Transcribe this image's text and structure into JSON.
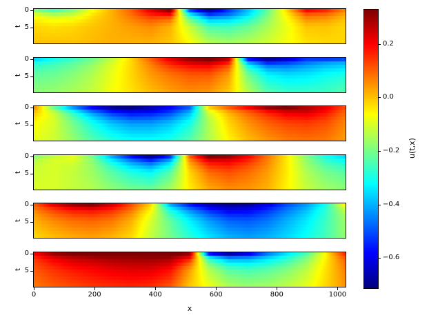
{
  "figure": {
    "background": "#ffffff",
    "text_color": "#000000"
  },
  "chart_data": {
    "type": "heatmap",
    "title": "",
    "xlabel": "x",
    "ylabel": "t",
    "colorbar_label": "u(t,x)",
    "colormap": "jet",
    "vmin": -0.71,
    "vmax": 0.33,
    "x_range": [
      0,
      1024
    ],
    "t_range": [
      0,
      10
    ],
    "x_tick_values": [
      0,
      200,
      400,
      600,
      800,
      1000
    ],
    "x_tick_labels": [
      "0",
      "200",
      "400",
      "600",
      "800",
      "1000"
    ],
    "t_tick_values": [
      0,
      5
    ],
    "t_tick_labels": [
      "0",
      "5"
    ],
    "colorbar_tick_values": [
      0.2,
      0.0,
      -0.2,
      -0.4,
      -0.6
    ],
    "colorbar_tick_labels": [
      "0.2",
      "0.0",
      "−0.2",
      "−0.4",
      "−0.6"
    ],
    "grid_x": [
      0,
      64,
      128,
      192,
      256,
      320,
      384,
      448,
      512,
      576,
      640,
      704,
      768,
      832,
      896,
      960,
      1024
    ],
    "grid_t": [
      0,
      1,
      2.5,
      5,
      10
    ],
    "panels": [
      {
        "name": "panel-1",
        "values": [
          [
            -0.18,
            -0.24,
            -0.18,
            -0.06,
            0.02,
            0.1,
            0.22,
            0.32,
            -0.5,
            -0.68,
            -0.52,
            -0.38,
            -0.22,
            -0.02,
            0.2,
            0.16,
            0.06
          ],
          [
            -0.1,
            -0.16,
            -0.13,
            -0.04,
            0.02,
            0.09,
            0.18,
            0.22,
            -0.35,
            -0.55,
            -0.48,
            -0.36,
            -0.2,
            -0.04,
            0.12,
            0.1,
            0.03
          ],
          [
            -0.05,
            -0.08,
            -0.07,
            -0.02,
            0.02,
            0.07,
            0.12,
            0.1,
            -0.22,
            -0.4,
            -0.38,
            -0.3,
            -0.18,
            -0.06,
            0.06,
            0.05,
            0.0
          ],
          [
            -0.02,
            -0.03,
            -0.02,
            0.0,
            0.02,
            0.04,
            0.06,
            0.02,
            -0.12,
            -0.25,
            -0.26,
            -0.22,
            -0.15,
            -0.08,
            0.0,
            0.0,
            -0.02
          ],
          [
            0.0,
            0.0,
            0.0,
            0.01,
            0.02,
            0.02,
            0.02,
            0.0,
            -0.06,
            -0.14,
            -0.16,
            -0.14,
            -0.11,
            -0.07,
            -0.03,
            -0.02,
            -0.02
          ]
        ]
      },
      {
        "name": "panel-2",
        "values": [
          [
            -0.36,
            -0.3,
            -0.26,
            -0.2,
            -0.12,
            -0.02,
            0.1,
            0.22,
            0.3,
            0.33,
            0.26,
            -0.55,
            -0.68,
            -0.62,
            -0.52,
            -0.52,
            -0.5
          ],
          [
            -0.3,
            -0.27,
            -0.23,
            -0.18,
            -0.1,
            -0.02,
            0.08,
            0.18,
            0.24,
            0.26,
            0.18,
            -0.4,
            -0.55,
            -0.52,
            -0.46,
            -0.42,
            -0.4
          ],
          [
            -0.26,
            -0.24,
            -0.21,
            -0.16,
            -0.09,
            -0.02,
            0.06,
            0.13,
            0.17,
            0.18,
            0.1,
            -0.28,
            -0.42,
            -0.43,
            -0.4,
            -0.37,
            -0.35
          ],
          [
            -0.22,
            -0.21,
            -0.18,
            -0.14,
            -0.08,
            -0.02,
            0.04,
            0.08,
            0.11,
            0.11,
            0.04,
            -0.2,
            -0.32,
            -0.35,
            -0.34,
            -0.31,
            -0.29
          ],
          [
            -0.18,
            -0.17,
            -0.15,
            -0.12,
            -0.07,
            -0.03,
            0.01,
            0.04,
            0.06,
            0.05,
            0.0,
            -0.14,
            -0.24,
            -0.27,
            -0.27,
            -0.26,
            -0.24
          ]
        ]
      },
      {
        "name": "panel-3",
        "values": [
          [
            0.06,
            -0.2,
            -0.42,
            -0.58,
            -0.68,
            -0.7,
            -0.66,
            -0.58,
            -0.48,
            -0.02,
            0.1,
            0.2,
            0.3,
            0.33,
            0.28,
            0.22,
            0.12
          ],
          [
            0.02,
            -0.14,
            -0.32,
            -0.48,
            -0.58,
            -0.62,
            -0.6,
            -0.54,
            -0.42,
            -0.08,
            0.04,
            0.12,
            0.2,
            0.26,
            0.26,
            0.2,
            0.1
          ],
          [
            -0.02,
            -0.1,
            -0.24,
            -0.38,
            -0.48,
            -0.53,
            -0.52,
            -0.47,
            -0.36,
            -0.12,
            0.0,
            0.08,
            0.14,
            0.19,
            0.2,
            0.16,
            0.08
          ],
          [
            -0.06,
            -0.1,
            -0.2,
            -0.3,
            -0.38,
            -0.42,
            -0.42,
            -0.38,
            -0.3,
            -0.14,
            -0.02,
            0.05,
            0.1,
            0.13,
            0.14,
            0.12,
            0.06
          ],
          [
            -0.08,
            -0.11,
            -0.17,
            -0.24,
            -0.29,
            -0.32,
            -0.32,
            -0.3,
            -0.24,
            -0.14,
            -0.05,
            0.01,
            0.05,
            0.08,
            0.09,
            0.08,
            0.04
          ]
        ]
      },
      {
        "name": "panel-4",
        "values": [
          [
            -0.18,
            -0.12,
            -0.08,
            -0.2,
            -0.4,
            -0.56,
            -0.68,
            -0.52,
            0.1,
            0.33,
            0.3,
            0.2,
            0.08,
            -0.04,
            -0.18,
            -0.3,
            -0.36
          ],
          [
            -0.14,
            -0.1,
            -0.09,
            -0.18,
            -0.34,
            -0.47,
            -0.56,
            -0.42,
            0.06,
            0.24,
            0.24,
            0.17,
            0.07,
            -0.04,
            -0.17,
            -0.27,
            -0.32
          ],
          [
            -0.12,
            -0.1,
            -0.11,
            -0.17,
            -0.28,
            -0.38,
            -0.44,
            -0.32,
            0.02,
            0.16,
            0.18,
            0.13,
            0.06,
            -0.04,
            -0.16,
            -0.24,
            -0.28
          ],
          [
            -0.11,
            -0.1,
            -0.12,
            -0.16,
            -0.23,
            -0.29,
            -0.32,
            -0.23,
            -0.02,
            0.09,
            0.12,
            0.09,
            0.04,
            -0.04,
            -0.14,
            -0.2,
            -0.23
          ],
          [
            -0.1,
            -0.1,
            -0.12,
            -0.14,
            -0.18,
            -0.21,
            -0.22,
            -0.16,
            -0.04,
            0.03,
            0.06,
            0.05,
            0.02,
            -0.05,
            -0.12,
            -0.16,
            -0.18
          ]
        ]
      },
      {
        "name": "panel-5",
        "values": [
          [
            0.1,
            0.22,
            0.3,
            0.32,
            0.24,
            0.12,
            -0.02,
            -0.4,
            -0.55,
            -0.65,
            -0.7,
            -0.68,
            -0.6,
            -0.5,
            -0.42,
            -0.3,
            -0.05
          ],
          [
            0.08,
            0.16,
            0.22,
            0.24,
            0.19,
            0.1,
            -0.04,
            -0.33,
            -0.48,
            -0.58,
            -0.63,
            -0.62,
            -0.56,
            -0.47,
            -0.4,
            -0.28,
            -0.1
          ],
          [
            0.05,
            0.11,
            0.15,
            0.16,
            0.13,
            0.06,
            -0.07,
            -0.27,
            -0.4,
            -0.5,
            -0.56,
            -0.56,
            -0.51,
            -0.44,
            -0.37,
            -0.27,
            -0.14
          ],
          [
            0.02,
            0.06,
            0.09,
            0.1,
            0.08,
            0.02,
            -0.1,
            -0.22,
            -0.33,
            -0.42,
            -0.48,
            -0.49,
            -0.46,
            -0.4,
            -0.34,
            -0.26,
            -0.16
          ],
          [
            -0.02,
            0.01,
            0.03,
            0.04,
            0.02,
            -0.02,
            -0.12,
            -0.2,
            -0.28,
            -0.35,
            -0.4,
            -0.42,
            -0.4,
            -0.36,
            -0.31,
            -0.25,
            -0.17
          ]
        ]
      },
      {
        "name": "panel-6",
        "values": [
          [
            0.2,
            0.3,
            0.33,
            0.34,
            0.34,
            0.34,
            0.35,
            0.35,
            0.3,
            -0.55,
            -0.68,
            -0.6,
            -0.45,
            -0.34,
            -0.24,
            -0.05,
            0.16
          ],
          [
            0.16,
            0.24,
            0.28,
            0.3,
            0.31,
            0.31,
            0.32,
            0.31,
            0.22,
            -0.35,
            -0.48,
            -0.46,
            -0.38,
            -0.3,
            -0.2,
            -0.05,
            0.12
          ],
          [
            0.13,
            0.19,
            0.23,
            0.25,
            0.27,
            0.28,
            0.28,
            0.26,
            0.12,
            -0.22,
            -0.34,
            -0.35,
            -0.31,
            -0.25,
            -0.17,
            -0.04,
            0.09
          ],
          [
            0.11,
            0.15,
            0.18,
            0.2,
            0.22,
            0.23,
            0.23,
            0.19,
            0.04,
            -0.14,
            -0.23,
            -0.25,
            -0.23,
            -0.19,
            -0.13,
            -0.03,
            0.07
          ],
          [
            0.08,
            0.11,
            0.13,
            0.15,
            0.16,
            0.17,
            0.16,
            0.12,
            0.0,
            -0.08,
            -0.15,
            -0.17,
            -0.16,
            -0.13,
            -0.09,
            -0.02,
            0.05
          ]
        ]
      }
    ]
  }
}
